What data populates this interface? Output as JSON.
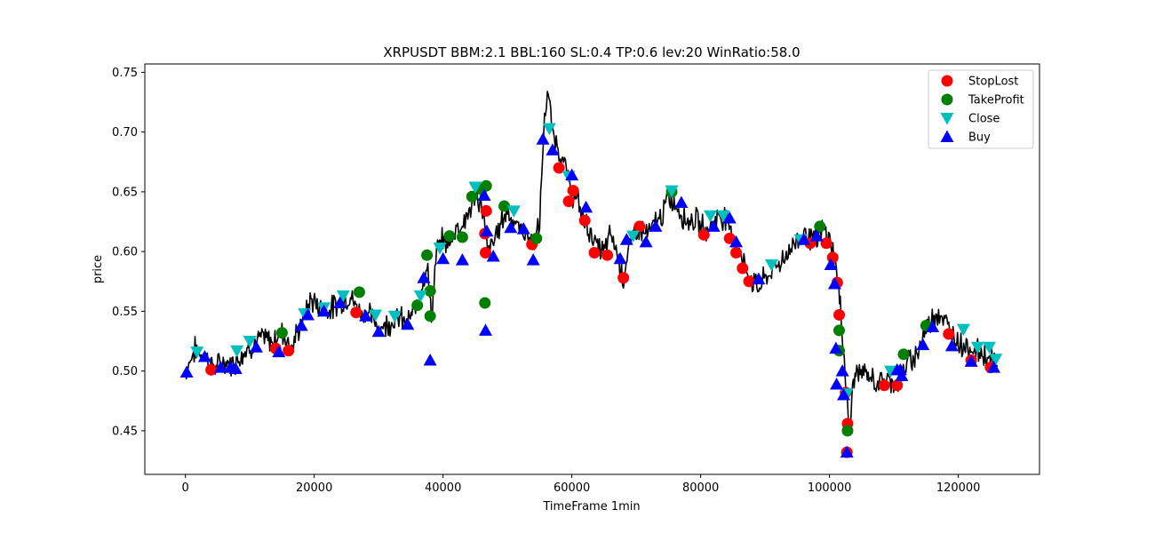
{
  "chart_data": {
    "type": "line",
    "title": "XRPUSDT BBM:2.1 BBL:160 SL:0.4 TP:0.6 lev:20 WinRatio:58.0",
    "xlabel": "TimeFrame 1min",
    "ylabel": "price",
    "xlim": [
      -6300,
      132600
    ],
    "ylim": [
      0.4135,
      0.757
    ],
    "x_ticks": [
      0,
      20000,
      40000,
      60000,
      80000,
      100000,
      120000
    ],
    "x_tick_labels": [
      "0",
      "20000",
      "40000",
      "60000",
      "80000",
      "100000",
      "120000"
    ],
    "y_ticks": [
      0.45,
      0.5,
      0.55,
      0.6,
      0.65,
      0.7,
      0.75
    ],
    "y_tick_labels": [
      "0.45",
      "0.50",
      "0.55",
      "0.60",
      "0.65",
      "0.70",
      "0.75"
    ],
    "grid": false,
    "legend_position": "top-right",
    "price_series": {
      "name": "price",
      "color": "#000000",
      "anchors": [
        [
          0,
          0.5
        ],
        [
          1500,
          0.518
        ],
        [
          3000,
          0.512
        ],
        [
          4500,
          0.503
        ],
        [
          6000,
          0.507
        ],
        [
          7500,
          0.506
        ],
        [
          9000,
          0.516
        ],
        [
          10500,
          0.522
        ],
        [
          12000,
          0.528
        ],
        [
          13500,
          0.524
        ],
        [
          15000,
          0.533
        ],
        [
          16500,
          0.52
        ],
        [
          18000,
          0.54
        ],
        [
          19500,
          0.56
        ],
        [
          21000,
          0.553
        ],
        [
          22500,
          0.552
        ],
        [
          24000,
          0.557
        ],
        [
          25500,
          0.563
        ],
        [
          27000,
          0.55
        ],
        [
          28500,
          0.548
        ],
        [
          30000,
          0.536
        ],
        [
          31500,
          0.54
        ],
        [
          33000,
          0.545
        ],
        [
          34500,
          0.54
        ],
        [
          36000,
          0.556
        ],
        [
          37500,
          0.59
        ],
        [
          38200,
          0.545
        ],
        [
          39000,
          0.6
        ],
        [
          40000,
          0.61
        ],
        [
          41000,
          0.605
        ],
        [
          42000,
          0.62
        ],
        [
          43000,
          0.622
        ],
        [
          44000,
          0.633
        ],
        [
          45000,
          0.645
        ],
        [
          46000,
          0.64
        ],
        [
          46500,
          0.62
        ],
        [
          47000,
          0.6
        ],
        [
          48000,
          0.61
        ],
        [
          49000,
          0.625
        ],
        [
          50000,
          0.635
        ],
        [
          51000,
          0.625
        ],
        [
          52000,
          0.618
        ],
        [
          53000,
          0.615
        ],
        [
          54000,
          0.606
        ],
        [
          55000,
          0.622
        ],
        [
          55600,
          0.7
        ],
        [
          56200,
          0.735
        ],
        [
          57000,
          0.7
        ],
        [
          58000,
          0.685
        ],
        [
          59000,
          0.67
        ],
        [
          60000,
          0.648
        ],
        [
          61000,
          0.64
        ],
        [
          62000,
          0.625
        ],
        [
          63000,
          0.615
        ],
        [
          64000,
          0.603
        ],
        [
          65000,
          0.6
        ],
        [
          66000,
          0.615
        ],
        [
          67000,
          0.6
        ],
        [
          68000,
          0.578
        ],
        [
          69000,
          0.605
        ],
        [
          70000,
          0.62
        ],
        [
          71000,
          0.617
        ],
        [
          72000,
          0.615
        ],
        [
          73000,
          0.625
        ],
        [
          74000,
          0.63
        ],
        [
          75000,
          0.645
        ],
        [
          76000,
          0.64
        ],
        [
          77000,
          0.632
        ],
        [
          78000,
          0.625
        ],
        [
          79000,
          0.628
        ],
        [
          80000,
          0.622
        ],
        [
          81000,
          0.618
        ],
        [
          82000,
          0.625
        ],
        [
          83000,
          0.63
        ],
        [
          84000,
          0.628
        ],
        [
          85000,
          0.612
        ],
        [
          86000,
          0.6
        ],
        [
          87000,
          0.585
        ],
        [
          88000,
          0.575
        ],
        [
          89000,
          0.57
        ],
        [
          90000,
          0.578
        ],
        [
          91000,
          0.583
        ],
        [
          92000,
          0.59
        ],
        [
          93000,
          0.595
        ],
        [
          94000,
          0.603
        ],
        [
          95000,
          0.61
        ],
        [
          96000,
          0.617
        ],
        [
          97000,
          0.612
        ],
        [
          98000,
          0.608
        ],
        [
          99000,
          0.618
        ],
        [
          100000,
          0.61
        ],
        [
          100800,
          0.595
        ],
        [
          101300,
          0.575
        ],
        [
          101800,
          0.545
        ],
        [
          102300,
          0.51
        ],
        [
          102800,
          0.47
        ],
        [
          103200,
          0.45
        ],
        [
          103700,
          0.495
        ],
        [
          104500,
          0.5
        ],
        [
          106000,
          0.495
        ],
        [
          107500,
          0.49
        ],
        [
          109000,
          0.492
        ],
        [
          110500,
          0.49
        ],
        [
          112000,
          0.505
        ],
        [
          113500,
          0.515
        ],
        [
          115000,
          0.535
        ],
        [
          116500,
          0.55
        ],
        [
          117500,
          0.545
        ],
        [
          118500,
          0.535
        ],
        [
          120000,
          0.525
        ],
        [
          121500,
          0.52
        ],
        [
          123000,
          0.517
        ],
        [
          124500,
          0.512
        ],
        [
          126000,
          0.505
        ]
      ]
    },
    "series": [
      {
        "name": "StopLost",
        "marker": "circle",
        "color": "#ff0000",
        "points": [
          [
            4000,
            0.501
          ],
          [
            14000,
            0.519
          ],
          [
            16000,
            0.517
          ],
          [
            26500,
            0.549
          ],
          [
            46500,
            0.615
          ],
          [
            46700,
            0.634
          ],
          [
            46600,
            0.599
          ],
          [
            53800,
            0.606
          ],
          [
            58000,
            0.67
          ],
          [
            59500,
            0.642
          ],
          [
            60200,
            0.651
          ],
          [
            62000,
            0.626
          ],
          [
            63500,
            0.599
          ],
          [
            65500,
            0.597
          ],
          [
            68000,
            0.578
          ],
          [
            70500,
            0.621
          ],
          [
            80500,
            0.614
          ],
          [
            84500,
            0.611
          ],
          [
            85500,
            0.599
          ],
          [
            86500,
            0.586
          ],
          [
            87500,
            0.575
          ],
          [
            97000,
            0.607
          ],
          [
            99500,
            0.607
          ],
          [
            100500,
            0.595
          ],
          [
            101200,
            0.574
          ],
          [
            101500,
            0.547
          ],
          [
            102500,
            0.482
          ],
          [
            102800,
            0.456
          ],
          [
            102700,
            0.432
          ],
          [
            108500,
            0.488
          ],
          [
            110500,
            0.488
          ],
          [
            118500,
            0.531
          ],
          [
            122000,
            0.509
          ],
          [
            125000,
            0.503
          ]
        ]
      },
      {
        "name": "TakeProfit",
        "marker": "circle",
        "color": "#008000",
        "points": [
          [
            15000,
            0.532
          ],
          [
            27000,
            0.566
          ],
          [
            36000,
            0.555
          ],
          [
            37500,
            0.597
          ],
          [
            38000,
            0.567
          ],
          [
            38000,
            0.546
          ],
          [
            41000,
            0.613
          ],
          [
            43000,
            0.612
          ],
          [
            44500,
            0.646
          ],
          [
            46000,
            0.652
          ],
          [
            46700,
            0.655
          ],
          [
            46500,
            0.557
          ],
          [
            49500,
            0.638
          ],
          [
            54500,
            0.611
          ],
          [
            75500,
            0.65
          ],
          [
            98500,
            0.621
          ],
          [
            101500,
            0.534
          ],
          [
            101500,
            0.517
          ],
          [
            102800,
            0.45
          ],
          [
            111500,
            0.514
          ],
          [
            115000,
            0.538
          ]
        ]
      },
      {
        "name": "Close",
        "marker": "triangle-down",
        "color": "#00bfbf",
        "points": [
          [
            1800,
            0.516
          ],
          [
            8000,
            0.517
          ],
          [
            10000,
            0.525
          ],
          [
            18500,
            0.548
          ],
          [
            21500,
            0.553
          ],
          [
            24500,
            0.563
          ],
          [
            29500,
            0.547
          ],
          [
            32500,
            0.546
          ],
          [
            36500,
            0.563
          ],
          [
            39500,
            0.603
          ],
          [
            45000,
            0.654
          ],
          [
            51000,
            0.634
          ],
          [
            56500,
            0.703
          ],
          [
            59500,
            0.663
          ],
          [
            69500,
            0.613
          ],
          [
            75500,
            0.651
          ],
          [
            81500,
            0.63
          ],
          [
            83500,
            0.63
          ],
          [
            91000,
            0.589
          ],
          [
            95500,
            0.61
          ],
          [
            102700,
            0.481
          ],
          [
            109500,
            0.5
          ],
          [
            120800,
            0.535
          ],
          [
            123000,
            0.52
          ],
          [
            124800,
            0.52
          ],
          [
            125800,
            0.51
          ]
        ]
      },
      {
        "name": "Buy",
        "marker": "triangle-up",
        "color": "#0000ff",
        "points": [
          [
            200,
            0.499
          ],
          [
            3000,
            0.512
          ],
          [
            5500,
            0.503
          ],
          [
            7000,
            0.503
          ],
          [
            7800,
            0.502
          ],
          [
            11000,
            0.52
          ],
          [
            14500,
            0.516
          ],
          [
            18000,
            0.538
          ],
          [
            19000,
            0.547
          ],
          [
            21500,
            0.55
          ],
          [
            24000,
            0.557
          ],
          [
            28000,
            0.546
          ],
          [
            30000,
            0.533
          ],
          [
            34500,
            0.539
          ],
          [
            37000,
            0.578
          ],
          [
            38000,
            0.509
          ],
          [
            40000,
            0.594
          ],
          [
            43000,
            0.593
          ],
          [
            46400,
            0.647
          ],
          [
            46600,
            0.534
          ],
          [
            46800,
            0.617
          ],
          [
            47800,
            0.596
          ],
          [
            50500,
            0.62
          ],
          [
            52500,
            0.619
          ],
          [
            54000,
            0.593
          ],
          [
            55500,
            0.694
          ],
          [
            57000,
            0.685
          ],
          [
            60000,
            0.664
          ],
          [
            62200,
            0.637
          ],
          [
            67500,
            0.594
          ],
          [
            68500,
            0.61
          ],
          [
            71500,
            0.608
          ],
          [
            73000,
            0.621
          ],
          [
            77000,
            0.641
          ],
          [
            82000,
            0.621
          ],
          [
            84500,
            0.628
          ],
          [
            85500,
            0.608
          ],
          [
            89000,
            0.577
          ],
          [
            96000,
            0.61
          ],
          [
            98000,
            0.613
          ],
          [
            100200,
            0.589
          ],
          [
            100800,
            0.573
          ],
          [
            101000,
            0.519
          ],
          [
            101100,
            0.489
          ],
          [
            102000,
            0.5
          ],
          [
            102200,
            0.48
          ],
          [
            102700,
            0.432
          ],
          [
            110500,
            0.501
          ],
          [
            111000,
            0.501
          ],
          [
            111200,
            0.496
          ],
          [
            114500,
            0.522
          ],
          [
            116000,
            0.537
          ],
          [
            119000,
            0.521
          ],
          [
            122000,
            0.508
          ],
          [
            125500,
            0.503
          ]
        ]
      }
    ]
  }
}
